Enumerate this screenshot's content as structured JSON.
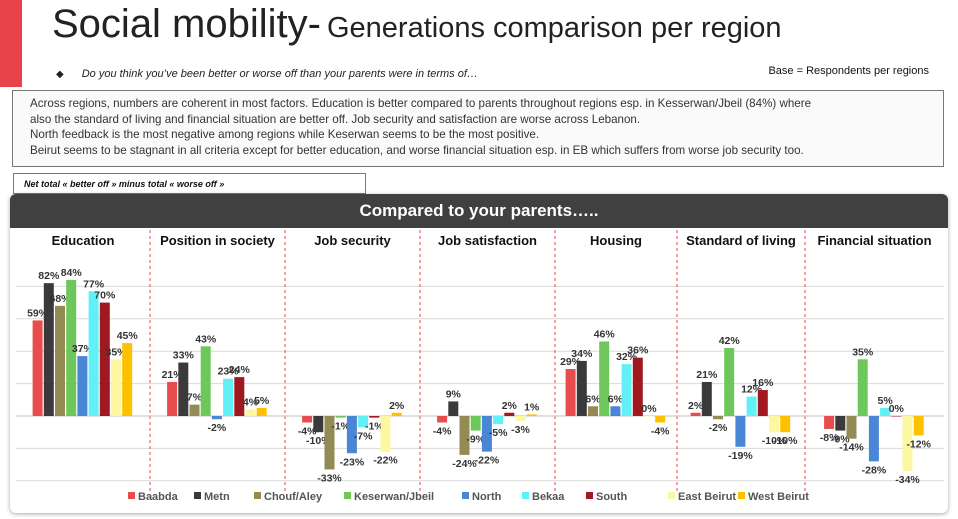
{
  "title": {
    "main": "Social mobility-",
    "sub": "Generations comparison per region"
  },
  "question": {
    "bullet": "◆",
    "text": "Do you think you’ve been better or worse off than your parents were in terms of…"
  },
  "base_note": "Base = Respondents per regions",
  "summary": "Across regions, numbers are coherent in most factors. Education is better compared to parents throughout regions esp. in Kesserwan/Jbeil (84%) where\nalso the standard of living and financial situation are better off.  Job security and satisfaction are worse across Lebanon.\nNorth feedback is the most negative among regions while Keserwan seems to be the most positive.\nBeirut seems to be stagnant in all criteria except for better education, and worse financial situation esp. in EB which suffers from worse job security too.",
  "net_note": "Net total « better off » minus total « worse off »",
  "chart_header": "Compared to your parents…..",
  "chart_data": {
    "type": "bar",
    "ylim": [
      -40,
      90
    ],
    "grid": true,
    "legend_position": "bottom",
    "value_suffix": "%",
    "categories": [
      "Education",
      "Position in society",
      "Job security",
      "Job satisfaction",
      "Housing",
      "Standard of living",
      "Financial situation"
    ],
    "series": [
      {
        "name": "Baabda",
        "color": "#e84c4c",
        "values": [
          59,
          21,
          -4,
          -4,
          29,
          2,
          -8
        ]
      },
      {
        "name": "Metn",
        "color": "#3a3a3a",
        "values": [
          82,
          33,
          -10,
          9,
          34,
          21,
          -9
        ]
      },
      {
        "name": "Chouf/Aley",
        "color": "#948a54",
        "values": [
          68,
          7,
          -33,
          -24,
          6,
          -2,
          -14
        ]
      },
      {
        "name": "Keserwan/Jbeil",
        "color": "#6ec75a",
        "values": [
          84,
          43,
          -1,
          -9,
          46,
          42,
          35
        ]
      },
      {
        "name": "North",
        "color": "#4a86d6",
        "values": [
          37,
          -2,
          -23,
          -22,
          6,
          -19,
          -28
        ]
      },
      {
        "name": "Bekaa",
        "color": "#61f0f5",
        "values": [
          77,
          23,
          -7,
          -5,
          32,
          12,
          5
        ]
      },
      {
        "name": "South",
        "color": "#a01820",
        "values": [
          70,
          24,
          -1,
          2,
          36,
          16,
          0
        ]
      },
      {
        "name": "East Beirut",
        "color": "#fcf7a0",
        "values": [
          35,
          4,
          -22,
          -3,
          0,
          -10,
          -34
        ]
      },
      {
        "name": "West Beirut",
        "color": "#ffc000",
        "values": [
          45,
          5,
          2,
          1,
          -4,
          -10,
          -12
        ]
      }
    ]
  }
}
